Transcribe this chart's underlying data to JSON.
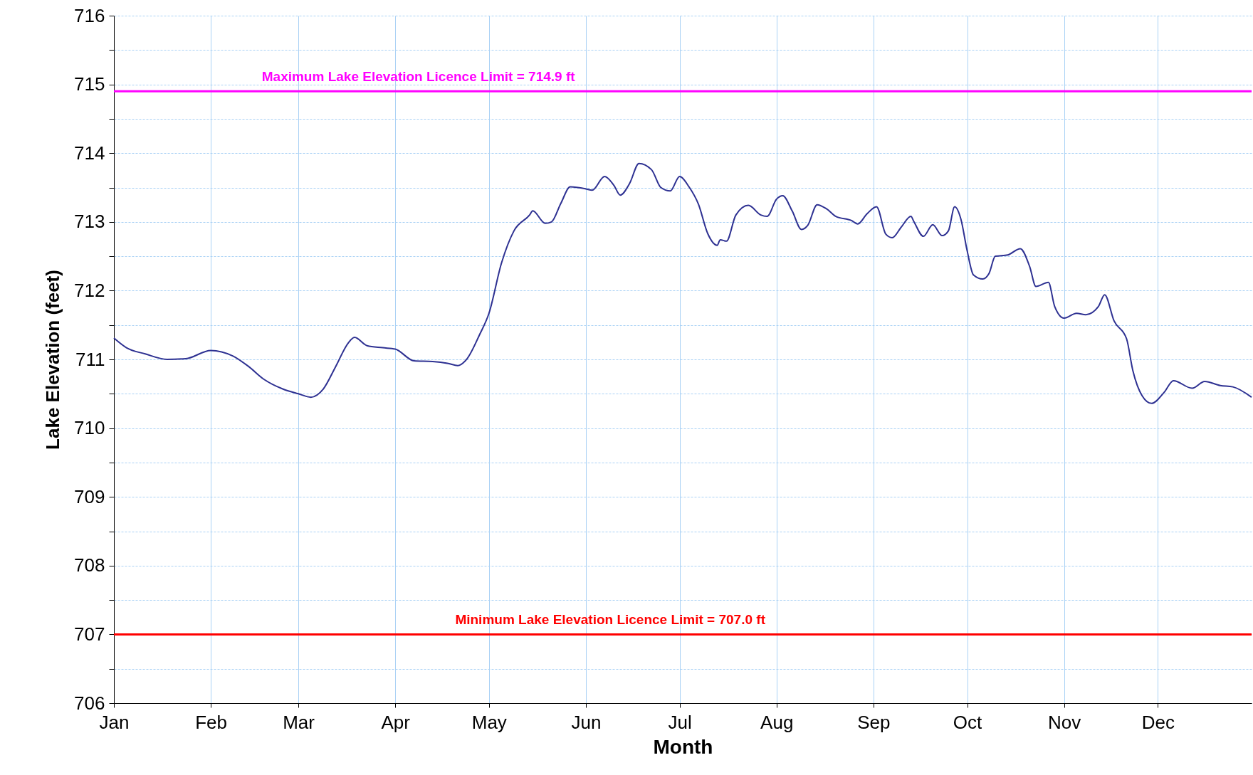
{
  "chart_data": {
    "type": "line",
    "xlabel": "Month",
    "ylabel": "Lake Elevation (feet)",
    "series": [
      {
        "color": "#2e3192",
        "x": [
          "--01-01",
          "--01-05",
          "--01-11",
          "--01-18",
          "--01-24",
          "--02-01",
          "--02-08",
          "--02-13",
          "--02-18",
          "--02-24",
          "--03-01",
          "--03-05",
          "--03-09",
          "--03-13",
          "--03-17",
          "--03-19",
          "--03-23",
          "--03-28",
          "--04-01",
          "--04-07",
          "--04-13",
          "--04-18",
          "--04-21",
          "--04-24",
          "--04-28",
          "--05-01",
          "--05-05",
          "--05-09",
          "--05-14",
          "--05-15",
          "--05-19",
          "--05-21",
          "--05-24",
          "--05-27",
          "--06-01",
          "--06-03",
          "--06-07",
          "--06-10",
          "--06-12",
          "--06-15",
          "--06-18",
          "--06-22",
          "--06-25",
          "--06-28",
          "--07-01",
          "--07-04",
          "--07-07",
          "--07-10",
          "--07-13",
          "--07-14",
          "--07-16",
          "--07-19",
          "--07-23",
          "--07-27",
          "--07-29",
          "--08-01",
          "--08-03",
          "--08-06",
          "--08-09",
          "--08-11",
          "--08-14",
          "--08-17",
          "--08-20",
          "--08-25",
          "--08-27",
          "--08-30",
          "--09-02",
          "--09-05",
          "--09-07",
          "--09-10",
          "--09-13",
          "--09-14",
          "--09-17",
          "--09-20",
          "--09-23",
          "--09-25",
          "--09-27",
          "--09-29",
          "--10-01",
          "--10-03",
          "--10-06",
          "--10-08",
          "--10-10",
          "--10-14",
          "--10-18",
          "--10-21",
          "--10-23",
          "--10-27",
          "--10-29",
          "--11-01",
          "--11-05",
          "--11-08",
          "--11-12",
          "--11-14",
          "--11-17",
          "--11-21",
          "--11-23",
          "--11-26",
          "--11-29",
          "--12-03",
          "--12-06",
          "--12-12",
          "--12-16",
          "--12-21",
          "--12-25",
          "--12-31"
        ],
        "values": [
          711.31,
          711.17,
          711.08,
          711.0,
          711.01,
          711.13,
          711.05,
          710.9,
          710.71,
          710.57,
          710.5,
          710.45,
          710.57,
          710.9,
          711.24,
          711.32,
          711.2,
          711.17,
          711.15,
          710.98,
          710.97,
          710.94,
          710.91,
          711.01,
          711.36,
          711.67,
          712.4,
          712.87,
          713.1,
          713.16,
          712.98,
          713.0,
          713.27,
          713.51,
          713.48,
          713.46,
          713.66,
          713.53,
          713.39,
          713.56,
          713.85,
          713.76,
          713.5,
          713.45,
          713.66,
          713.51,
          713.26,
          712.83,
          712.66,
          712.74,
          712.72,
          713.1,
          713.24,
          713.1,
          713.08,
          713.33,
          713.38,
          713.16,
          712.89,
          712.95,
          713.25,
          713.19,
          713.08,
          713.02,
          712.97,
          713.12,
          713.22,
          712.82,
          712.77,
          712.93,
          713.08,
          713.0,
          712.79,
          712.96,
          712.8,
          712.87,
          713.22,
          713.04,
          712.58,
          712.23,
          712.17,
          712.25,
          712.5,
          712.52,
          712.61,
          712.35,
          712.06,
          712.12,
          711.77,
          711.6,
          711.67,
          711.65,
          711.77,
          711.94,
          711.56,
          711.3,
          710.84,
          710.47,
          710.36,
          710.52,
          710.69,
          710.58,
          710.68,
          710.62,
          710.6,
          710.45
        ]
      }
    ],
    "xlim": [
      "--01-01",
      "--12-31"
    ],
    "xticks": [
      {
        "value": "--01-01",
        "label": "Jan"
      },
      {
        "value": "--02-01",
        "label": "Feb"
      },
      {
        "value": "--03-01",
        "label": "Mar"
      },
      {
        "value": "--04-01",
        "label": "Apr"
      },
      {
        "value": "--05-01",
        "label": "May"
      },
      {
        "value": "--06-01",
        "label": "Jun"
      },
      {
        "value": "--07-01",
        "label": "Jul"
      },
      {
        "value": "--08-01",
        "label": "Aug"
      },
      {
        "value": "--09-01",
        "label": "Sep"
      },
      {
        "value": "--10-01",
        "label": "Oct"
      },
      {
        "value": "--11-01",
        "label": "Nov"
      },
      {
        "value": "--12-01",
        "label": "Dec"
      }
    ],
    "ylim": [
      706,
      716
    ],
    "yticks": [
      706,
      {
        "value": 706.5,
        "label": null
      },
      707,
      {
        "value": 707.5,
        "label": null
      },
      708,
      {
        "value": 708.5,
        "label": null
      },
      709,
      {
        "value": 709.5,
        "label": null
      },
      710,
      {
        "value": 710.5,
        "label": null
      },
      711,
      {
        "value": 711.5,
        "label": null
      },
      712,
      {
        "value": 712.5,
        "label": null
      },
      713,
      {
        "value": 713.5,
        "label": null
      },
      714,
      {
        "value": 714.5,
        "label": null
      },
      715,
      {
        "value": 715.5,
        "label": null
      },
      716
    ],
    "grid": true,
    "marker": "none",
    "line_style": "solid",
    "ref_lines": [
      {
        "axis": "y",
        "value": 714.9,
        "label": "Maximum Lake Elevation Licence Limit = 714.9 ft",
        "color": "#ff00ff"
      },
      {
        "axis": "y",
        "value": 707.0,
        "label": "Minimum Lake Elevation Licence Limit = 707.0 ft",
        "color": "#ff0000"
      }
    ]
  }
}
